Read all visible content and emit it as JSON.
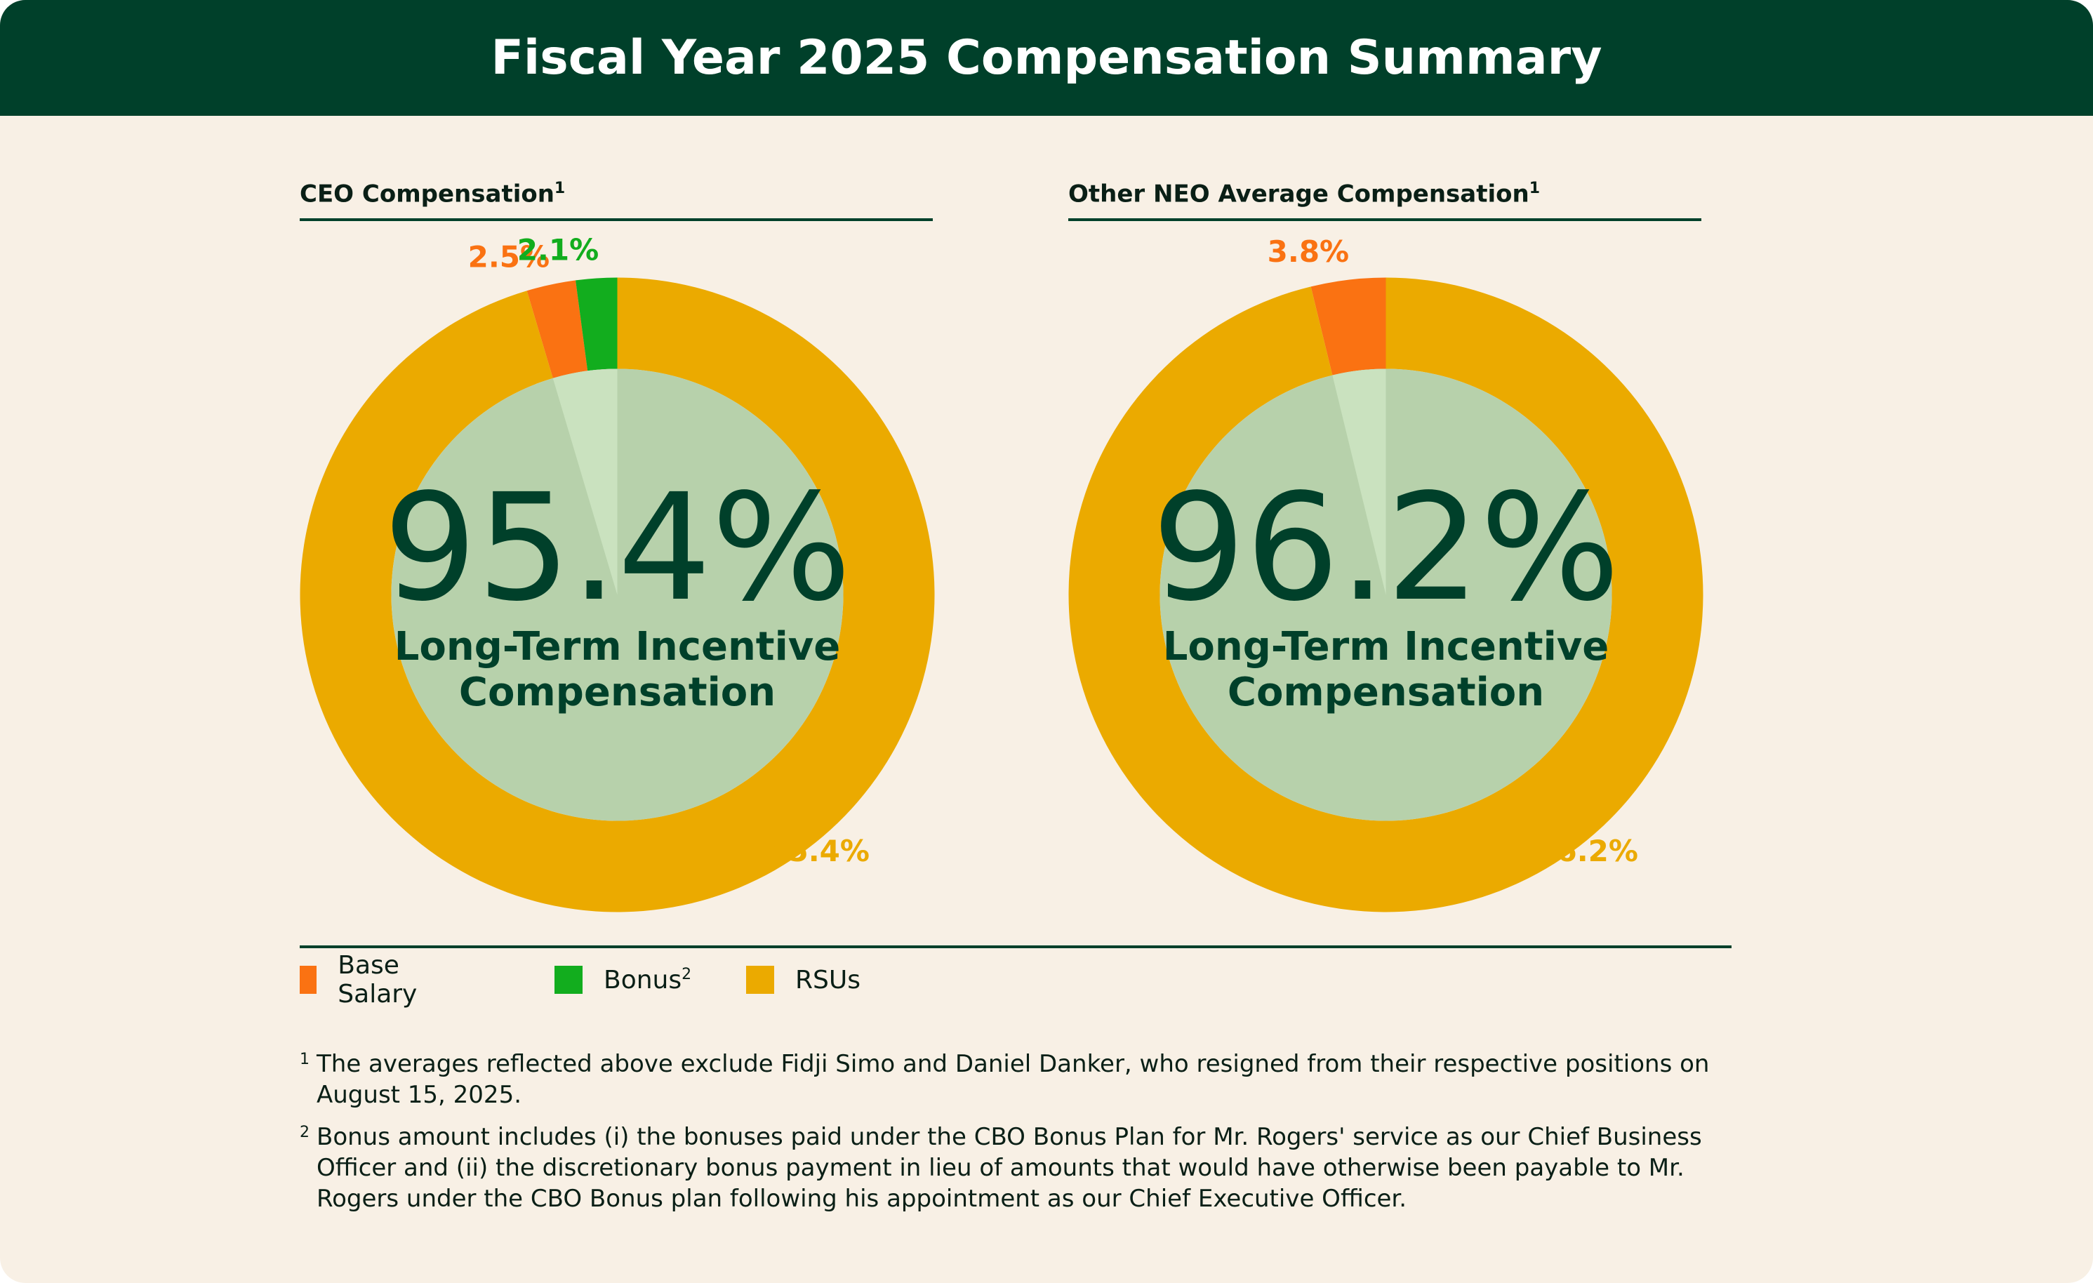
{
  "header": {
    "title": "Fiscal Year 2025 Compensation Summary"
  },
  "colors": {
    "header_bg": "#00402a",
    "card_bg": "#f8f0e5",
    "base_salary": "#fa7212",
    "bonus": "#12ad1e",
    "rsus": "#ebaa00",
    "center_fill": "#b7d1ab",
    "center_wedge": "#cae2bf",
    "text_dark": "#00402a"
  },
  "chart_data": [
    {
      "type": "pie",
      "title": "CEO Compensation",
      "title_footnote": "1",
      "center_value": "95.4%",
      "center_label_line1": "Long-Term Incentive",
      "center_label_line2": "Compensation",
      "categories": [
        "Base Salary",
        "Bonus",
        "RSUs"
      ],
      "values": [
        2.5,
        2.1,
        95.4
      ],
      "labels": [
        "2.5%",
        "2.1%",
        "95.4%"
      ]
    },
    {
      "type": "pie",
      "title": "Other NEO Average Compensation",
      "title_footnote": "1",
      "center_value": "96.2%",
      "center_label_line1": "Long-Term Incentive",
      "center_label_line2": "Compensation",
      "categories": [
        "Base Salary",
        "RSUs"
      ],
      "values": [
        3.8,
        96.2
      ],
      "labels": [
        "3.8%",
        "96.2%"
      ]
    }
  ],
  "legend": {
    "items": [
      {
        "label": "Base Salary",
        "footnote": "",
        "color": "#fa7212"
      },
      {
        "label": "Bonus",
        "footnote": "2",
        "color": "#12ad1e"
      },
      {
        "label": "RSUs",
        "footnote": "",
        "color": "#ebaa00"
      }
    ]
  },
  "footnotes": [
    {
      "mark": "1",
      "line1": "The averages reflected above exclude Fidji Simo and Daniel Danker, who resigned from their respective positions on",
      "line2": "August 15, 2025.",
      "line3": ""
    },
    {
      "mark": "2",
      "line1": "Bonus amount includes (i) the bonuses paid under the CBO Bonus Plan for Mr. Rogers' service as our Chief Business",
      "line2": "Officer and (ii) the discretionary bonus payment in lieu of amounts that would have otherwise been payable to Mr.",
      "line3": "Rogers under the CBO Bonus plan following his appointment as our Chief Executive Officer."
    }
  ]
}
